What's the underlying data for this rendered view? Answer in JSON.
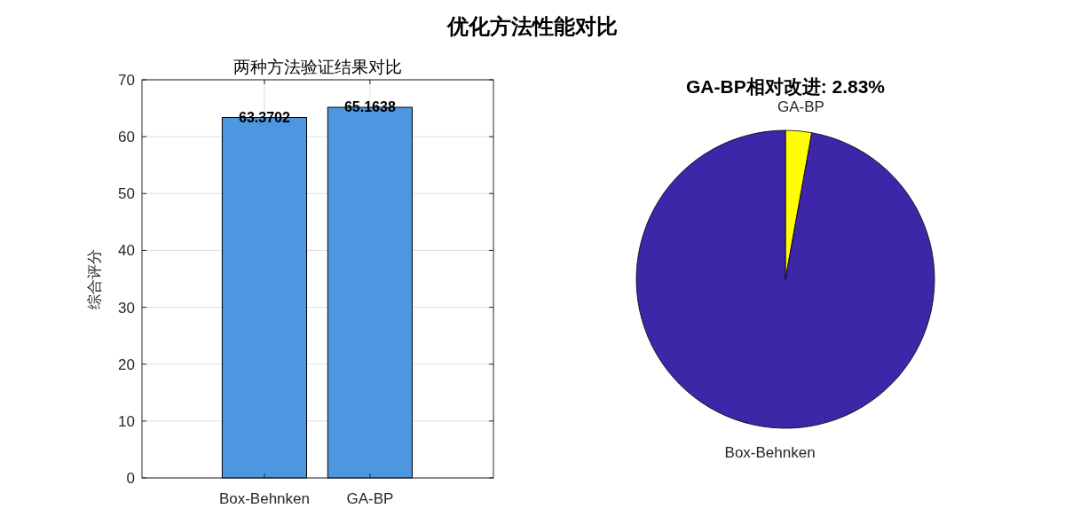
{
  "chart_data": [
    {
      "type": "bar",
      "title": "优化方法性能对比",
      "subtitle": "两种方法验证结果对比",
      "ylabel": "综合评分",
      "categories": [
        "Box-Behnken",
        "GA-BP"
      ],
      "values": [
        63.3702,
        65.1638
      ],
      "color": "#4d96e0",
      "ylim": [
        0,
        70
      ],
      "yticks": [
        0,
        10,
        20,
        30,
        40,
        50,
        60,
        70
      ],
      "grid": true,
      "data_labels": true
    },
    {
      "type": "pie",
      "title": "GA-BP相对改进: 2.83%",
      "categories": [
        "GA-BP",
        "Box-Behnken"
      ],
      "values": [
        2.83,
        97.17
      ],
      "colors": [
        "#ffff00",
        "#3e26a8"
      ]
    }
  ]
}
